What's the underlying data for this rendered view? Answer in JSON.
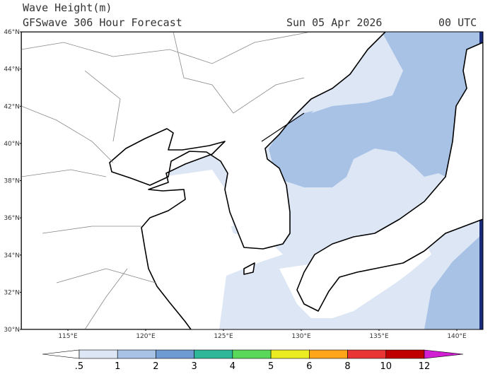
{
  "header": {
    "title": "Wave Height(m)",
    "subtitle": "GFSwave 306 Hour Forecast",
    "date": "Sun 05 Apr 2026",
    "time": "00 UTC"
  },
  "map": {
    "lat_labels": [
      "46°N",
      "44°N",
      "42°N",
      "40°N",
      "38°N",
      "36°N",
      "34°N",
      "32°N",
      "30°N"
    ],
    "lon_labels": [
      "115°E",
      "120°E",
      "125°E",
      "130°E",
      "135°E",
      "140°E"
    ]
  },
  "colorbar": {
    "labels": [
      ".5",
      "1",
      "2",
      "3",
      "4",
      "5",
      "6",
      "8",
      "10",
      "12"
    ],
    "colors": [
      "#ffffff",
      "#dce6f4",
      "#a8c2e6",
      "#6f9bd3",
      "#2fb79a",
      "#5ad85a",
      "#ecec22",
      "#ffa51a",
      "#ea3535",
      "#c00000",
      "#d21ed2"
    ]
  }
}
